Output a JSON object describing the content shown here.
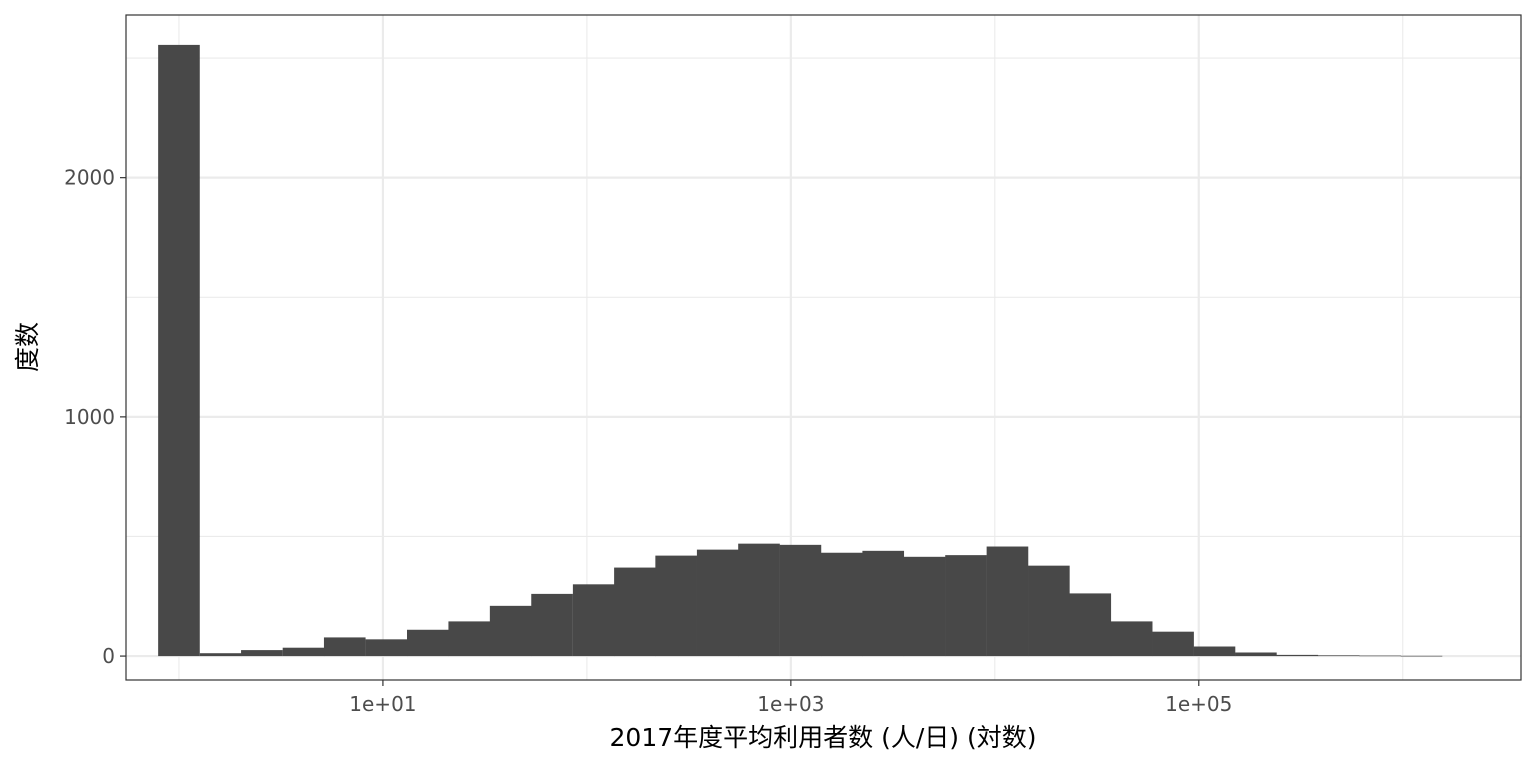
{
  "chart_data": {
    "type": "bar",
    "title": "",
    "xlabel": "2017年度平均利用者数 (人/日) (対数)",
    "ylabel": "度数",
    "x_scale": "log10",
    "x_unit": "bin center (人/日)",
    "xlim": [
      0.55,
      3800000
    ],
    "ylim": [
      -100,
      2680
    ],
    "x_ticks": [
      {
        "value": 10,
        "label": "1e+01"
      },
      {
        "value": 1000,
        "label": "1e+03"
      },
      {
        "value": 100000,
        "label": "1e+05"
      }
    ],
    "y_ticks": [
      {
        "value": 0,
        "label": "0"
      },
      {
        "value": 1000,
        "label": "1000"
      },
      {
        "value": 2000,
        "label": "2000"
      }
    ],
    "y_minor_ticks": [
      500,
      1500,
      2500
    ],
    "x_minor_ticks": [
      1,
      100,
      10000,
      1000000
    ],
    "grid": true,
    "colors": {
      "bar": "#484848",
      "grid": "#ebebeb",
      "frame": "#333333",
      "background": "#ffffff"
    },
    "bin_centers": [
      1.0,
      1.6,
      2.55,
      4.08,
      6.5,
      10.4,
      16.6,
      26.5,
      42.3,
      67.5,
      108,
      172,
      274,
      438,
      698,
      1114,
      1778,
      2837,
      4528,
      7226,
      11533,
      18404,
      29372,
      46875,
      74808,
      119389,
      190533,
      304073,
      485271,
      774449,
      1235960
    ],
    "values": [
      2555,
      12,
      25,
      35,
      78,
      70,
      110,
      145,
      210,
      260,
      300,
      370,
      420,
      445,
      470,
      465,
      432,
      440,
      415,
      422,
      458,
      378,
      262,
      145,
      102,
      40,
      15,
      5,
      3,
      2,
      1
    ]
  }
}
